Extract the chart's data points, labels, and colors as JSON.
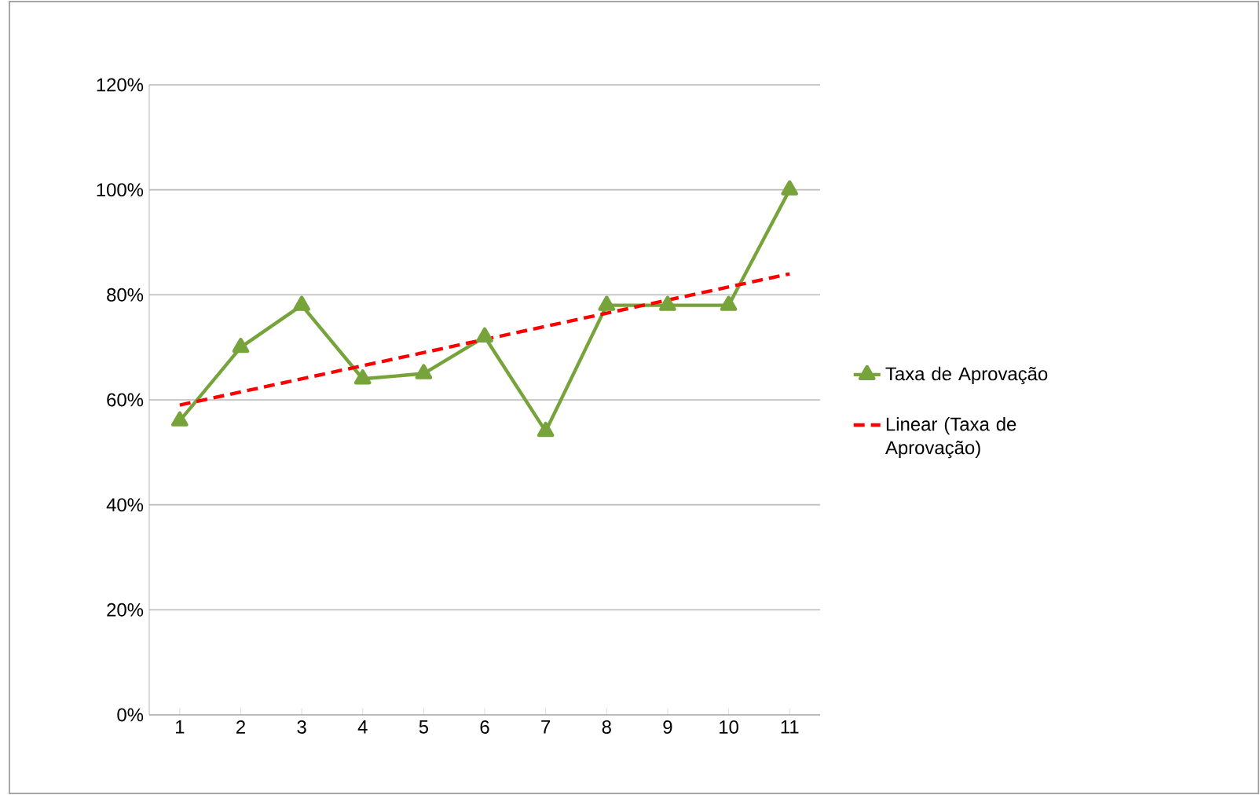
{
  "chart_data": {
    "type": "line",
    "x": [
      1,
      2,
      3,
      4,
      5,
      6,
      7,
      8,
      9,
      10,
      11
    ],
    "xlim": [
      0.5,
      11.5
    ],
    "xticks": [
      1,
      2,
      3,
      4,
      5,
      6,
      7,
      8,
      9,
      10,
      11
    ],
    "ylim": [
      0,
      120
    ],
    "yticks": [
      {
        "value": 0,
        "label": "0%"
      },
      {
        "value": 20,
        "label": "20%"
      },
      {
        "value": 40,
        "label": "40%"
      },
      {
        "value": 60,
        "label": "60%"
      },
      {
        "value": 80,
        "label": "80%"
      },
      {
        "value": 100,
        "label": "100%"
      },
      {
        "value": 120,
        "label": "120%"
      }
    ],
    "grid": "y",
    "legend": "right",
    "series": [
      {
        "name": "Taxa de Aprovação",
        "color": "#77a33b",
        "marker": "triangle",
        "line_style": "solid",
        "values": [
          56,
          70,
          78,
          64,
          65,
          72,
          54,
          78,
          78,
          78,
          100
        ]
      },
      {
        "name": "Linear (Taxa de Aprovação)",
        "color": "#ff0000",
        "marker": "none",
        "line_style": "dashed",
        "x": [
          1,
          11
        ],
        "values": [
          59,
          84
        ]
      }
    ]
  }
}
